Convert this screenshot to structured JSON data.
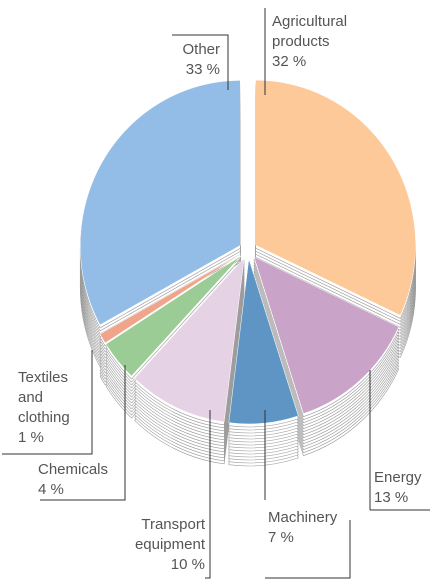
{
  "chart_data": {
    "type": "pie",
    "categories": [
      "Agricultural products",
      "Energy",
      "Machinery",
      "Transport equipment",
      "Chemicals",
      "Textiles and clothing",
      "Other"
    ],
    "values": [
      32,
      13,
      7,
      10,
      4,
      1,
      33
    ],
    "value_labels": [
      "32 %",
      "13 %",
      "7 %",
      "10 %",
      "4 %",
      "1 %",
      "33 %"
    ],
    "colors": [
      "#fdc998",
      "#c9a3c8",
      "#5e95c4",
      "#e6d2e5",
      "#9ccc96",
      "#f0a58a",
      "#93bde6"
    ]
  }
}
